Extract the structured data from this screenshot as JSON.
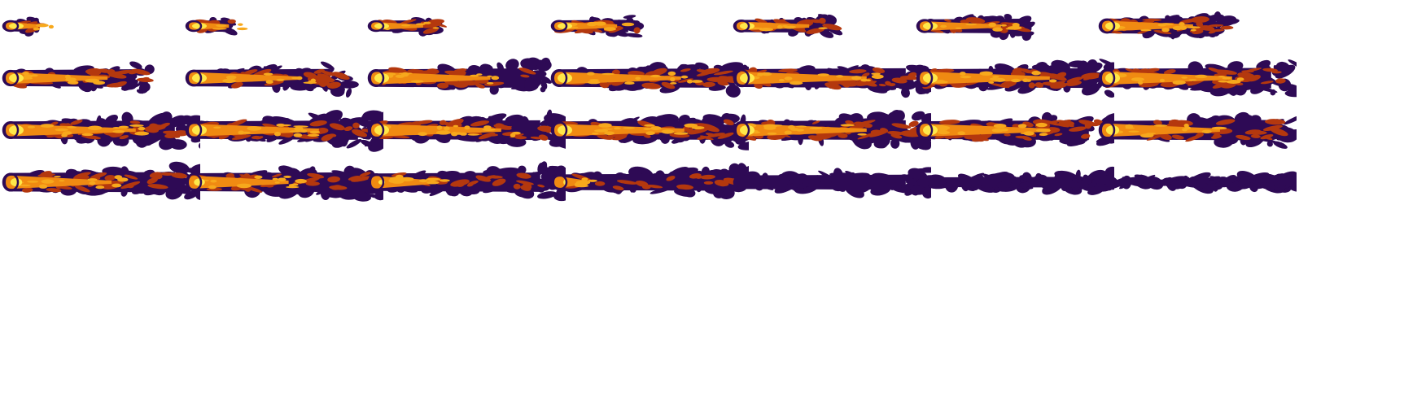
{
  "sequence": {
    "description_hidden": "",
    "frames": [
      {
        "index": 1,
        "length": 0.1,
        "width": 0.55,
        "core": 1.0,
        "turbulence": 0.0
      },
      {
        "index": 2,
        "length": 0.17,
        "width": 0.55,
        "core": 1.0,
        "turbulence": 0.05
      },
      {
        "index": 3,
        "length": 0.28,
        "width": 0.55,
        "core": 1.0,
        "turbulence": 0.15
      },
      {
        "index": 4,
        "length": 0.38,
        "width": 0.58,
        "core": 1.0,
        "turbulence": 0.25
      },
      {
        "index": 5,
        "length": 0.47,
        "width": 0.62,
        "core": 1.0,
        "turbulence": 0.35
      },
      {
        "index": 6,
        "length": 0.55,
        "width": 0.68,
        "core": 1.0,
        "turbulence": 0.45
      },
      {
        "index": 7,
        "length": 0.64,
        "width": 0.75,
        "core": 1.0,
        "turbulence": 0.5
      },
      {
        "index": 8,
        "length": 0.74,
        "width": 0.82,
        "core": 1.0,
        "turbulence": 0.55
      },
      {
        "index": 9,
        "length": 0.82,
        "width": 0.85,
        "core": 1.0,
        "turbulence": 0.6
      },
      {
        "index": 10,
        "length": 0.9,
        "width": 0.9,
        "core": 1.0,
        "turbulence": 0.65
      },
      {
        "index": 11,
        "length": 0.97,
        "width": 0.9,
        "core": 1.0,
        "turbulence": 0.7
      },
      {
        "index": 12,
        "length": 1.0,
        "width": 0.92,
        "core": 1.0,
        "turbulence": 0.75
      },
      {
        "index": 13,
        "length": 1.0,
        "width": 0.92,
        "core": 1.0,
        "turbulence": 0.78
      },
      {
        "index": 14,
        "length": 1.0,
        "width": 0.95,
        "core": 1.0,
        "turbulence": 0.8
      },
      {
        "index": 15,
        "length": 1.0,
        "width": 0.9,
        "core": 1.0,
        "turbulence": 0.82
      },
      {
        "index": 16,
        "length": 1.0,
        "width": 0.9,
        "core": 1.0,
        "turbulence": 0.84
      },
      {
        "index": 17,
        "length": 1.0,
        "width": 0.92,
        "core": 1.0,
        "turbulence": 0.86
      },
      {
        "index": 18,
        "length": 1.0,
        "width": 0.9,
        "core": 1.0,
        "turbulence": 0.88
      },
      {
        "index": 19,
        "length": 1.0,
        "width": 0.92,
        "core": 1.0,
        "turbulence": 0.88
      },
      {
        "index": 20,
        "length": 1.0,
        "width": 0.92,
        "core": 1.0,
        "turbulence": 0.9
      },
      {
        "index": 21,
        "length": 1.0,
        "width": 0.95,
        "core": 0.9,
        "turbulence": 0.9
      },
      {
        "index": 22,
        "length": 1.0,
        "width": 0.95,
        "core": 0.8,
        "turbulence": 0.92
      },
      {
        "index": 23,
        "length": 1.0,
        "width": 0.92,
        "core": 0.75,
        "turbulence": 0.92
      },
      {
        "index": 24,
        "length": 1.0,
        "width": 0.9,
        "core": 0.45,
        "turbulence": 0.94
      },
      {
        "index": 25,
        "length": 1.0,
        "width": 0.8,
        "core": 0.2,
        "turbulence": 0.95
      },
      {
        "index": 26,
        "length": 1.0,
        "width": 0.7,
        "core": 0.05,
        "turbulence": 0.96
      },
      {
        "index": 27,
        "length": 1.0,
        "width": 0.5,
        "core": 0.0,
        "turbulence": 0.97
      },
      {
        "index": 28,
        "length": 1.0,
        "width": 0.3,
        "core": 0.0,
        "turbulence": 0.99
      }
    ]
  },
  "colors": {
    "background": "#ffffff",
    "outer": "#2e0a55",
    "mid": "#b4380e",
    "inner": "#f08a12",
    "hot": "#f7a81c",
    "core": "#ffe84a"
  }
}
